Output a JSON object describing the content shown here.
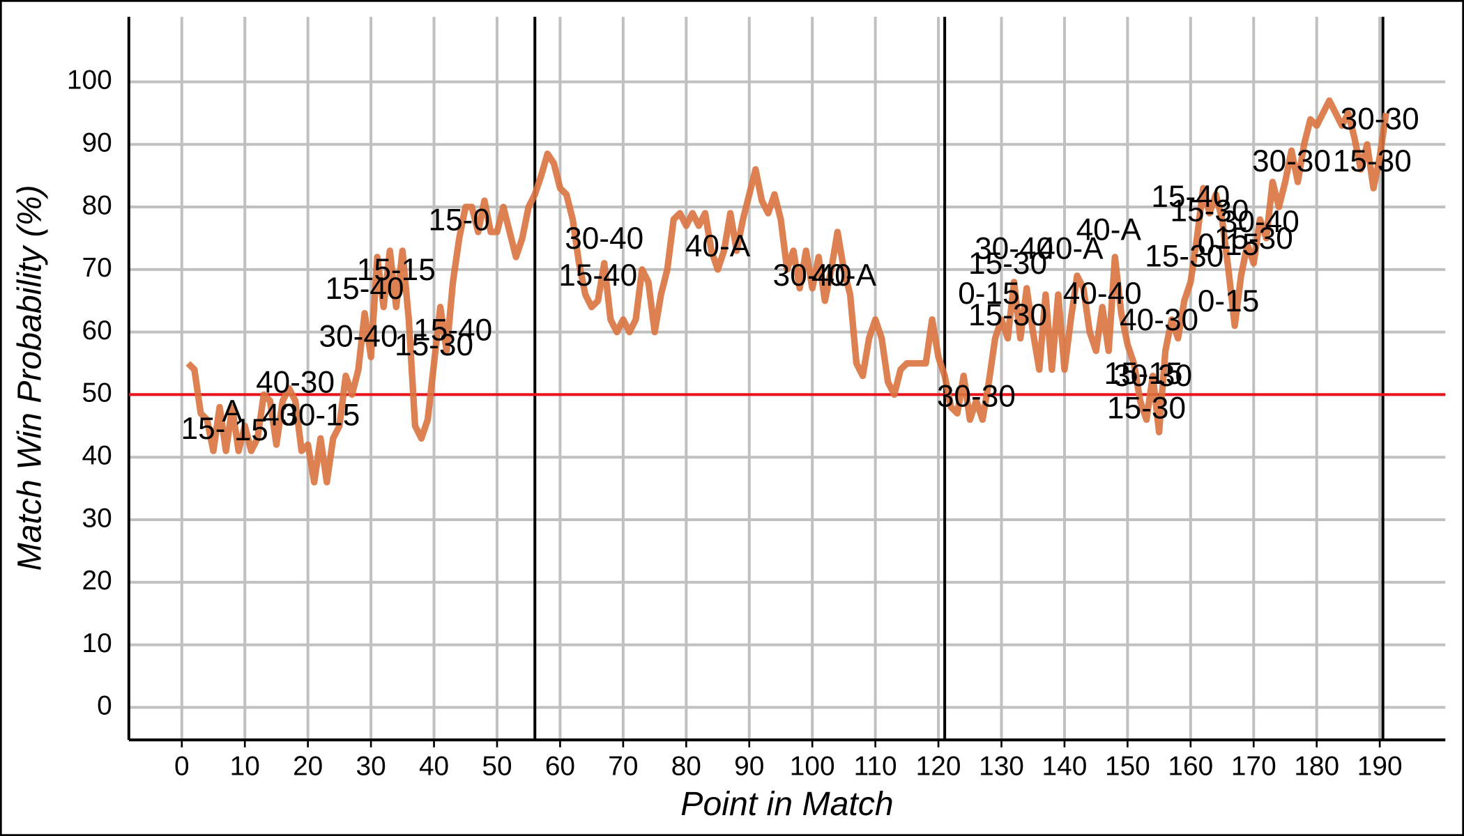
{
  "chart_data": {
    "type": "line",
    "xlabel": "Point in Match",
    "ylabel": "Match Win Probability (%)",
    "color": "#d9733f",
    "x": [
      1,
      2,
      3,
      4,
      5,
      6,
      7,
      8,
      9,
      10,
      11,
      12,
      13,
      14,
      15,
      16,
      17,
      18,
      19,
      20,
      21,
      22,
      23,
      24,
      25,
      26,
      27,
      28,
      29,
      30,
      31,
      32,
      33,
      34,
      35,
      36,
      37,
      38,
      39,
      40,
      41,
      42,
      43,
      44,
      45,
      46,
      47,
      48,
      49,
      50,
      51,
      52,
      53,
      54,
      55,
      56,
      57,
      58,
      59,
      60,
      61,
      62,
      63,
      64,
      65,
      66,
      67,
      68,
      69,
      70,
      71,
      72,
      73,
      74,
      75,
      76,
      77,
      78,
      79,
      80,
      81,
      82,
      83,
      84,
      85,
      86,
      87,
      88,
      89,
      90,
      91,
      92,
      93,
      94,
      95,
      96,
      97,
      98,
      99,
      100,
      101,
      102,
      103,
      104,
      105,
      106,
      107,
      108,
      109,
      110,
      111,
      112,
      113,
      114,
      115,
      116,
      117,
      118,
      119,
      120,
      121,
      122,
      123,
      124,
      125,
      126,
      127,
      128,
      129,
      130,
      131,
      132,
      133,
      134,
      135,
      136,
      137,
      138,
      139,
      140,
      141,
      142,
      143,
      144,
      145,
      146,
      147,
      148,
      149,
      150,
      151,
      152,
      153,
      154,
      155,
      156,
      157,
      158,
      159,
      160,
      161,
      162,
      163,
      164,
      165,
      166,
      167,
      168,
      169,
      170,
      171,
      172,
      173,
      174,
      175,
      176,
      177,
      178,
      179,
      180,
      181,
      182,
      183,
      184,
      185,
      186,
      187,
      188,
      189,
      190,
      191
    ],
    "values": [
      55,
      54,
      47,
      46,
      41,
      48,
      41,
      48,
      41,
      45,
      41,
      43,
      50,
      49,
      42,
      49,
      51,
      49,
      41,
      42,
      36,
      43,
      36,
      43,
      45,
      53,
      50,
      54,
      63,
      56,
      72,
      64,
      73,
      64,
      73,
      62,
      45,
      43,
      46,
      55,
      64,
      57,
      68,
      75,
      80,
      80,
      76,
      81,
      76,
      76,
      80,
      76,
      72,
      75,
      80,
      82,
      85,
      88.5,
      87,
      83,
      82,
      78,
      71,
      66,
      64,
      65,
      71,
      62,
      60,
      62,
      60,
      62,
      70,
      68,
      60,
      66,
      70,
      78,
      79,
      77,
      79,
      77,
      79,
      73,
      70,
      73,
      79,
      73,
      78,
      82,
      86,
      81,
      79,
      82,
      78,
      70,
      73,
      67,
      73,
      67,
      72,
      65,
      70,
      76,
      70,
      66,
      55,
      53,
      59,
      62,
      59,
      52,
      50,
      54,
      55,
      55,
      55,
      55,
      62,
      56,
      53,
      48,
      47,
      53,
      46,
      49,
      46,
      52,
      59,
      62,
      59,
      68,
      59,
      67,
      60,
      54,
      66,
      54,
      66,
      54,
      62,
      69,
      67,
      60,
      57,
      64,
      57,
      72,
      63,
      58,
      55,
      49,
      46,
      53,
      44,
      57,
      62,
      59,
      65,
      68,
      75,
      83,
      79,
      82,
      78,
      70,
      61,
      69,
      74,
      71,
      78,
      75,
      84,
      80,
      84,
      89,
      84,
      90,
      94,
      93,
      95,
      97,
      95,
      93,
      95,
      91,
      86,
      90,
      83,
      88,
      95
    ],
    "xlim": [
      -8.4,
      200.4
    ],
    "ylim": [
      -5.2,
      110.4
    ],
    "xticks": [
      0,
      10,
      20,
      30,
      40,
      50,
      60,
      70,
      80,
      90,
      100,
      110,
      120,
      130,
      140,
      150,
      160,
      170,
      180,
      190
    ],
    "yticks": [
      0,
      10,
      20,
      30,
      40,
      50,
      60,
      70,
      80,
      90,
      100
    ],
    "grid": true,
    "set_lines": [
      56,
      121,
      190.5
    ],
    "reference_line": 50,
    "reference_color": "#e8121b",
    "annotations": [
      {
        "text": "15-",
        "x": 3.4,
        "y": 44.2
      },
      {
        "text": "A",
        "x": 8,
        "y": 47
      },
      {
        "text": "15",
        "x": 11,
        "y": 44
      },
      {
        "text": "40-30",
        "x": 18,
        "y": 51.6
      },
      {
        "text": "40",
        "x": 15.5,
        "y": 46.4
      },
      {
        "text": "30-15",
        "x": 22,
        "y": 46.4
      },
      {
        "text": "15-40",
        "x": 29,
        "y": 66.6
      },
      {
        "text": "15-15",
        "x": 34,
        "y": 69.6
      },
      {
        "text": "30-40",
        "x": 28,
        "y": 59
      },
      {
        "text": "15-30",
        "x": 40,
        "y": 57.6
      },
      {
        "text": "15-40",
        "x": 43,
        "y": 60
      },
      {
        "text": "15-0",
        "x": 44,
        "y": 77.6
      },
      {
        "text": "30-40",
        "x": 67,
        "y": 74.6
      },
      {
        "text": "15-40",
        "x": 66,
        "y": 68.7
      },
      {
        "text": "40-A",
        "x": 85,
        "y": 73.4
      },
      {
        "text": "30-40",
        "x": 100,
        "y": 68.7
      },
      {
        "text": "40-A",
        "x": 105,
        "y": 68.7
      },
      {
        "text": "30-30",
        "x": 126,
        "y": 49.4
      },
      {
        "text": "30-40",
        "x": 132,
        "y": 73
      },
      {
        "text": "40-A",
        "x": 141,
        "y": 73
      },
      {
        "text": "15-30",
        "x": 131,
        "y": 70.6
      },
      {
        "text": "0-15",
        "x": 128,
        "y": 65.8
      },
      {
        "text": "15-30",
        "x": 131,
        "y": 62.4
      },
      {
        "text": "40-40",
        "x": 146,
        "y": 65.8
      },
      {
        "text": "40-A",
        "x": 147,
        "y": 76
      },
      {
        "text": "40-30",
        "x": 155,
        "y": 61.6
      },
      {
        "text": "15-15",
        "x": 152.5,
        "y": 53
      },
      {
        "text": "30-30",
        "x": 154,
        "y": 52.7
      },
      {
        "text": "15-30",
        "x": 153,
        "y": 47.5
      },
      {
        "text": "15-40",
        "x": 160,
        "y": 81.3
      },
      {
        "text": "15-30",
        "x": 163,
        "y": 79
      },
      {
        "text": "15-30",
        "x": 159,
        "y": 71.8
      },
      {
        "text": "30-40",
        "x": 171,
        "y": 77.3
      },
      {
        "text": "0-15",
        "x": 166,
        "y": 73.6
      },
      {
        "text": "15-30",
        "x": 170,
        "y": 74.6
      },
      {
        "text": "0-15",
        "x": 166,
        "y": 64.6
      },
      {
        "text": "30-30",
        "x": 176,
        "y": 87
      },
      {
        "text": "15-30",
        "x": 188.8,
        "y": 87
      },
      {
        "text": "30-30",
        "x": 190,
        "y": 93.7
      }
    ]
  }
}
